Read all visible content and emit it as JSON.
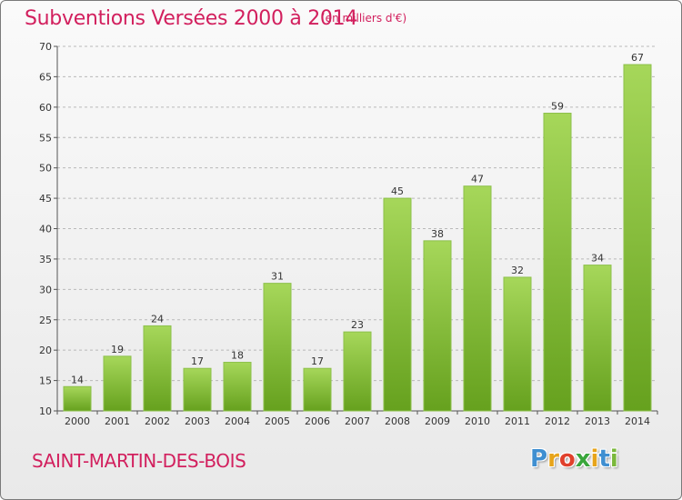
{
  "header": {
    "title": "Subventions Versées 2000 à 2014",
    "unit_note": "(en milliers d'€)"
  },
  "footer": {
    "commune": "SAINT-MARTIN-DES-BOIS",
    "logo_letters": [
      "P",
      "r",
      "o",
      "x",
      "i",
      "t",
      "i"
    ],
    "logo_colors": [
      "#3f8fd1",
      "#e7a41a",
      "#e0402c",
      "#3aa63c",
      "#e7a41a",
      "#3f8fd1",
      "#7ab83b"
    ]
  },
  "colors": {
    "accent": "#d2205e",
    "bar_light": "#a6d75a",
    "bar_dark": "#66a11e",
    "grid": "#b9b9b9"
  },
  "chart_data": {
    "type": "bar",
    "title": "Subventions Versées 2000 à 2014",
    "subtitle": "(en milliers d'€)",
    "categories": [
      "2000",
      "2001",
      "2002",
      "2003",
      "2004",
      "2005",
      "2006",
      "2007",
      "2008",
      "2009",
      "2010",
      "2011",
      "2012",
      "2013",
      "2014"
    ],
    "values": [
      14,
      19,
      24,
      17,
      18,
      31,
      17,
      23,
      45,
      38,
      47,
      32,
      59,
      34,
      67
    ],
    "ylim": [
      10,
      70
    ],
    "yticks": [
      10,
      15,
      20,
      25,
      30,
      35,
      40,
      45,
      50,
      55,
      60,
      65,
      70
    ],
    "grid": true,
    "data_labels": true
  }
}
